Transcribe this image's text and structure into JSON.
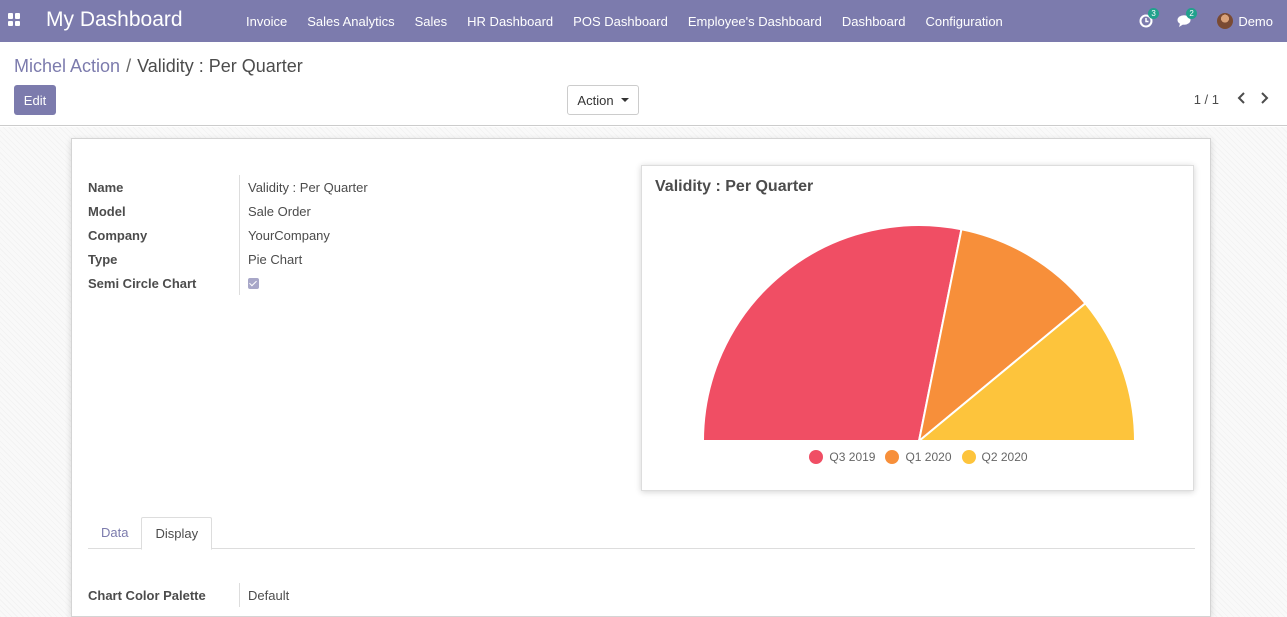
{
  "navbar": {
    "brand": "My Dashboard",
    "menu": [
      "Invoice",
      "Sales Analytics",
      "Sales",
      "HR Dashboard",
      "POS Dashboard",
      "Employee's Dashboard",
      "Dashboard",
      "Configuration"
    ],
    "activity_count": "3",
    "message_count": "2",
    "user": "Demo"
  },
  "breadcrumb": {
    "parent": "Michel Action",
    "separator": "/",
    "current": "Validity : Per Quarter"
  },
  "toolbar": {
    "edit_label": "Edit",
    "action_label": "Action"
  },
  "pager": {
    "value": "1 / 1"
  },
  "form": {
    "fields": [
      {
        "label": "Name",
        "value": "Validity : Per Quarter"
      },
      {
        "label": "Model",
        "value": "Sale Order"
      },
      {
        "label": "Company",
        "value": "YourCompany"
      },
      {
        "label": "Type",
        "value": "Pie Chart"
      }
    ],
    "semi_circle_label": "Semi Circle Chart",
    "semi_circle_checked": true
  },
  "tabs": [
    {
      "label": "Data",
      "active": false
    },
    {
      "label": "Display",
      "active": true
    }
  ],
  "display": {
    "palette_label": "Chart Color Palette",
    "palette_value": "Default"
  },
  "chart_data": {
    "type": "pie",
    "title": "Validity : Per Quarter",
    "semi_circle": true,
    "categories": [
      "Q3 2019",
      "Q1 2020",
      "Q2 2020"
    ],
    "values": [
      56.3,
      21.7,
      22.0
    ],
    "colors": [
      "#f04e64",
      "#f78f3a",
      "#fdc43c"
    ],
    "legend_position": "bottom"
  }
}
